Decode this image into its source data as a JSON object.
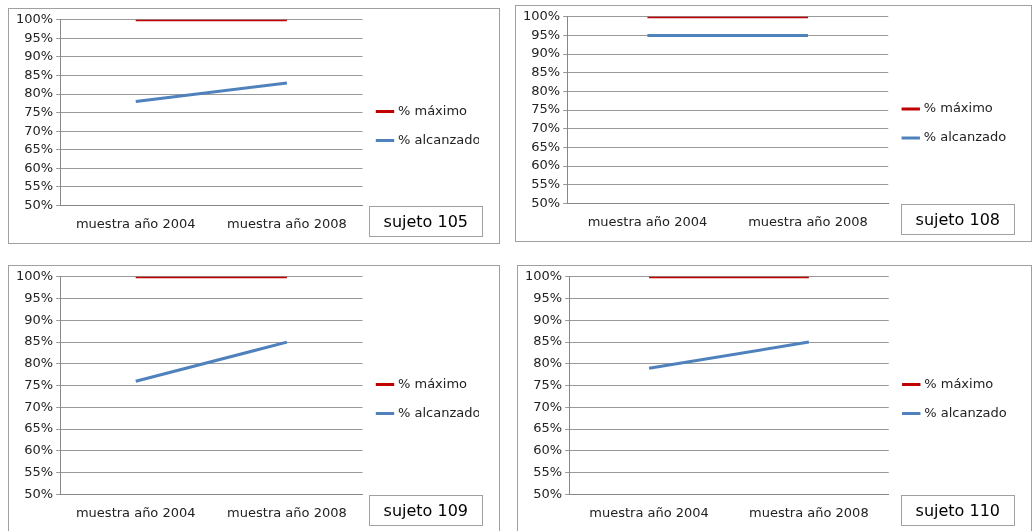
{
  "chart_data": [
    {
      "type": "line",
      "categories": [
        "muestra año 2004",
        "muestra año 2008"
      ],
      "series": [
        {
          "name": "% máximo",
          "color": "#c00000",
          "values": [
            100,
            100
          ]
        },
        {
          "name": "% alcanzado",
          "color": "#4f81bd",
          "values": [
            78,
            83
          ]
        }
      ],
      "ylim": [
        50,
        100
      ],
      "yticks": [
        {
          "value": 50,
          "label": "50%"
        },
        {
          "value": 55,
          "label": "55%"
        },
        {
          "value": 60,
          "label": "60%"
        },
        {
          "value": 65,
          "label": "65%"
        },
        {
          "value": 70,
          "label": "70%"
        },
        {
          "value": 75,
          "label": "75%"
        },
        {
          "value": 80,
          "label": "80%"
        },
        {
          "value": 85,
          "label": "85%"
        },
        {
          "value": 90,
          "label": "90%"
        },
        {
          "value": 95,
          "label": "95%"
        },
        {
          "value": 100,
          "label": "100%"
        }
      ],
      "grid": "y",
      "legend": "right",
      "marker": "none",
      "line_style": "solid",
      "annotations": [
        "sujeto 105"
      ]
    },
    {
      "type": "line",
      "categories": [
        "muestra año 2004",
        "muestra año 2008"
      ],
      "series": [
        {
          "name": "% máximo",
          "color": "#c00000",
          "values": [
            100,
            100
          ]
        },
        {
          "name": "% alcanzado",
          "color": "#4f81bd",
          "values": [
            95,
            95
          ]
        }
      ],
      "ylim": [
        50,
        100
      ],
      "yticks": [
        {
          "value": 50,
          "label": "50%"
        },
        {
          "value": 55,
          "label": "55%"
        },
        {
          "value": 60,
          "label": "60%"
        },
        {
          "value": 65,
          "label": "65%"
        },
        {
          "value": 70,
          "label": "70%"
        },
        {
          "value": 75,
          "label": "75%"
        },
        {
          "value": 80,
          "label": "80%"
        },
        {
          "value": 85,
          "label": "85%"
        },
        {
          "value": 90,
          "label": "90%"
        },
        {
          "value": 95,
          "label": "95%"
        },
        {
          "value": 100,
          "label": "100%"
        }
      ],
      "grid": "y",
      "legend": "right",
      "marker": "none",
      "line_style": "solid",
      "annotations": [
        "sujeto 108"
      ]
    },
    {
      "type": "line",
      "categories": [
        "muestra año 2004",
        "muestra año 2008"
      ],
      "series": [
        {
          "name": "% máximo",
          "color": "#c00000",
          "values": [
            100,
            100
          ]
        },
        {
          "name": "% alcanzado",
          "color": "#4f81bd",
          "values": [
            76,
            85
          ]
        }
      ],
      "ylim": [
        50,
        100
      ],
      "yticks": [
        {
          "value": 50,
          "label": "50%"
        },
        {
          "value": 55,
          "label": "55%"
        },
        {
          "value": 60,
          "label": "60%"
        },
        {
          "value": 65,
          "label": "65%"
        },
        {
          "value": 70,
          "label": "70%"
        },
        {
          "value": 75,
          "label": "75%"
        },
        {
          "value": 80,
          "label": "80%"
        },
        {
          "value": 85,
          "label": "85%"
        },
        {
          "value": 90,
          "label": "90%"
        },
        {
          "value": 95,
          "label": "95%"
        },
        {
          "value": 100,
          "label": "100%"
        }
      ],
      "grid": "y",
      "legend": "right",
      "marker": "none",
      "line_style": "solid",
      "annotations": [
        "sujeto 109"
      ]
    },
    {
      "type": "line",
      "categories": [
        "muestra año 2004",
        "muestra año 2008"
      ],
      "series": [
        {
          "name": "% máximo",
          "color": "#c00000",
          "values": [
            100,
            100
          ]
        },
        {
          "name": "% alcanzado",
          "color": "#4f81bd",
          "values": [
            79,
            85
          ]
        }
      ],
      "ylim": [
        50,
        100
      ],
      "yticks": [
        {
          "value": 50,
          "label": "50%"
        },
        {
          "value": 55,
          "label": "55%"
        },
        {
          "value": 60,
          "label": "60%"
        },
        {
          "value": 65,
          "label": "65%"
        },
        {
          "value": 70,
          "label": "70%"
        },
        {
          "value": 75,
          "label": "75%"
        },
        {
          "value": 80,
          "label": "80%"
        },
        {
          "value": 85,
          "label": "85%"
        },
        {
          "value": 90,
          "label": "90%"
        },
        {
          "value": 95,
          "label": "95%"
        },
        {
          "value": 100,
          "label": "100%"
        }
      ],
      "grid": "y",
      "legend": "right",
      "marker": "none",
      "line_style": "solid",
      "annotations": [
        "sujeto 110"
      ]
    }
  ]
}
